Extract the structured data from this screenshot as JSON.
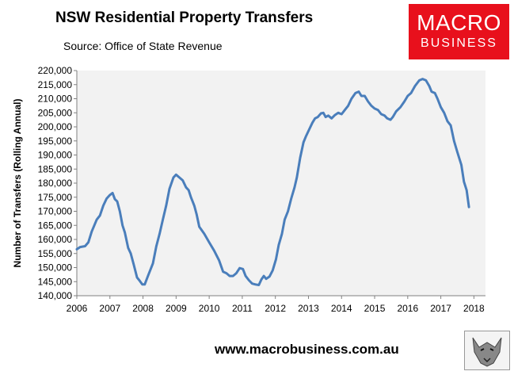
{
  "header": {
    "title": "NSW Residential Property Transfers",
    "subtitle": "Source: Office of State Revenue"
  },
  "logo": {
    "line1": "MACRO",
    "line2": "BUSINESS"
  },
  "footer": {
    "url": "www.macrobusiness.com.au"
  },
  "colors": {
    "line": "#4a7ebb",
    "plot_bg": "#f2f2f2",
    "logo_bg": "#e8101c"
  },
  "chart_data": {
    "type": "line",
    "title": "NSW Residential Property Transfers",
    "xlabel": "",
    "ylabel": "Number of Transfers (Rolling Annual)",
    "xlim": [
      2006,
      2018.35
    ],
    "ylim": [
      140000,
      220000
    ],
    "x_ticks": [
      "2006",
      "2007",
      "2008",
      "2009",
      "2010",
      "2011",
      "2012",
      "2013",
      "2014",
      "2015",
      "2016",
      "2017",
      "2018"
    ],
    "y_ticks": [
      "140,000",
      "145,000",
      "150,000",
      "155,000",
      "160,000",
      "165,000",
      "170,000",
      "175,000",
      "180,000",
      "185,000",
      "190,000",
      "195,000",
      "200,000",
      "205,000",
      "210,000",
      "215,000",
      "220,000"
    ],
    "grid": false,
    "legend": "none",
    "series": [
      {
        "points": [
          [
            2006.0,
            156500
          ],
          [
            2006.1,
            157300
          ],
          [
            2006.25,
            157600
          ],
          [
            2006.35,
            159000
          ],
          [
            2006.45,
            162800
          ],
          [
            2006.6,
            167000
          ],
          [
            2006.7,
            168500
          ],
          [
            2006.8,
            172000
          ],
          [
            2006.9,
            174500
          ],
          [
            2007.0,
            175800
          ],
          [
            2007.08,
            176500
          ],
          [
            2007.15,
            174300
          ],
          [
            2007.22,
            173500
          ],
          [
            2007.3,
            170000
          ],
          [
            2007.38,
            165000
          ],
          [
            2007.45,
            162500
          ],
          [
            2007.55,
            157000
          ],
          [
            2007.63,
            155000
          ],
          [
            2007.72,
            151000
          ],
          [
            2007.82,
            146500
          ],
          [
            2007.9,
            145300
          ],
          [
            2007.98,
            144000
          ],
          [
            2008.05,
            144000
          ],
          [
            2008.15,
            147000
          ],
          [
            2008.3,
            151500
          ],
          [
            2008.4,
            157500
          ],
          [
            2008.5,
            162000
          ],
          [
            2008.6,
            167000
          ],
          [
            2008.7,
            172000
          ],
          [
            2008.8,
            178000
          ],
          [
            2008.92,
            182000
          ],
          [
            2009.0,
            183000
          ],
          [
            2009.1,
            182000
          ],
          [
            2009.2,
            181000
          ],
          [
            2009.3,
            178500
          ],
          [
            2009.38,
            177500
          ],
          [
            2009.45,
            175000
          ],
          [
            2009.55,
            172000
          ],
          [
            2009.62,
            169000
          ],
          [
            2009.7,
            164500
          ],
          [
            2009.85,
            162000
          ],
          [
            2010.0,
            159000
          ],
          [
            2010.15,
            156000
          ],
          [
            2010.3,
            152500
          ],
          [
            2010.42,
            148500
          ],
          [
            2010.52,
            148000
          ],
          [
            2010.62,
            147000
          ],
          [
            2010.72,
            147000
          ],
          [
            2010.82,
            148000
          ],
          [
            2010.92,
            149800
          ],
          [
            2011.02,
            149500
          ],
          [
            2011.1,
            147000
          ],
          [
            2011.2,
            145500
          ],
          [
            2011.3,
            144300
          ],
          [
            2011.4,
            144000
          ],
          [
            2011.5,
            143800
          ],
          [
            2011.58,
            145800
          ],
          [
            2011.65,
            147000
          ],
          [
            2011.72,
            146000
          ],
          [
            2011.82,
            146800
          ],
          [
            2011.92,
            149000
          ],
          [
            2012.02,
            153000
          ],
          [
            2012.1,
            158000
          ],
          [
            2012.2,
            162000
          ],
          [
            2012.28,
            167000
          ],
          [
            2012.38,
            170000
          ],
          [
            2012.48,
            174500
          ],
          [
            2012.58,
            178500
          ],
          [
            2012.65,
            182000
          ],
          [
            2012.75,
            189000
          ],
          [
            2012.85,
            194500
          ],
          [
            2012.92,
            196500
          ],
          [
            2013.02,
            199000
          ],
          [
            2013.12,
            201500
          ],
          [
            2013.2,
            203000
          ],
          [
            2013.28,
            203500
          ],
          [
            2013.38,
            204800
          ],
          [
            2013.45,
            205000
          ],
          [
            2013.52,
            203500
          ],
          [
            2013.6,
            204000
          ],
          [
            2013.7,
            203000
          ],
          [
            2013.8,
            204200
          ],
          [
            2013.9,
            205000
          ],
          [
            2014.0,
            204500
          ],
          [
            2014.1,
            206000
          ],
          [
            2014.2,
            207500
          ],
          [
            2014.3,
            210000
          ],
          [
            2014.42,
            212000
          ],
          [
            2014.52,
            212500
          ],
          [
            2014.6,
            211000
          ],
          [
            2014.7,
            211000
          ],
          [
            2014.8,
            209000
          ],
          [
            2014.9,
            207500
          ],
          [
            2015.0,
            206500
          ],
          [
            2015.1,
            206000
          ],
          [
            2015.2,
            204500
          ],
          [
            2015.3,
            204000
          ],
          [
            2015.38,
            203000
          ],
          [
            2015.48,
            202500
          ],
          [
            2015.55,
            203500
          ],
          [
            2015.65,
            205500
          ],
          [
            2015.78,
            207000
          ],
          [
            2015.9,
            209000
          ],
          [
            2016.0,
            211000
          ],
          [
            2016.1,
            212000
          ],
          [
            2016.22,
            214500
          ],
          [
            2016.35,
            216500
          ],
          [
            2016.45,
            217000
          ],
          [
            2016.55,
            216500
          ],
          [
            2016.65,
            214500
          ],
          [
            2016.72,
            212500
          ],
          [
            2016.82,
            212000
          ],
          [
            2016.9,
            210000
          ],
          [
            2017.0,
            207000
          ],
          [
            2017.1,
            205000
          ],
          [
            2017.2,
            202000
          ],
          [
            2017.3,
            200500
          ],
          [
            2017.4,
            195000
          ],
          [
            2017.5,
            191000
          ],
          [
            2017.62,
            186500
          ],
          [
            2017.7,
            180500
          ],
          [
            2017.78,
            177500
          ],
          [
            2017.85,
            171500
          ]
        ]
      }
    ]
  }
}
